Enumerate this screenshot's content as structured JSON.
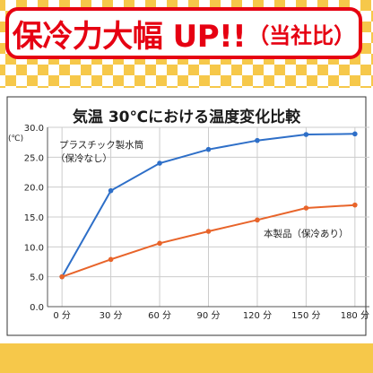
{
  "banner": {
    "headline": "保冷力大幅 UP!!",
    "suffix": "（当社比）",
    "text_color": "#e60012",
    "pattern_color": "#f6c84a"
  },
  "chart_data": {
    "type": "line",
    "title": "気温 30℃における温度変化比較",
    "ylabel": "",
    "xlabel": "",
    "y_unit": "(℃)",
    "categories": [
      "0 分",
      "30 分",
      "60 分",
      "90 分",
      "120 分",
      "150 分",
      "180 分"
    ],
    "x": [
      0,
      30,
      60,
      90,
      120,
      150,
      180
    ],
    "ylim": [
      0,
      30
    ],
    "yticks": [
      "0.0",
      "5.0",
      "10.0",
      "15.0",
      "20.0",
      "25.0",
      "30.0"
    ],
    "grid": true,
    "series": [
      {
        "name": "プラスチック製水筒（保冷なし）",
        "color": "#2e6fc8",
        "values": [
          5.0,
          19.4,
          24.0,
          26.3,
          27.8,
          28.8,
          28.9
        ]
      },
      {
        "name": "本製品（保冷あり）",
        "color": "#e8642a",
        "values": [
          5.0,
          7.9,
          10.6,
          12.6,
          14.5,
          16.5,
          17.0
        ]
      }
    ],
    "legend_placement": "labels beside each line (upper-left for plastic bottle, right for product)"
  }
}
